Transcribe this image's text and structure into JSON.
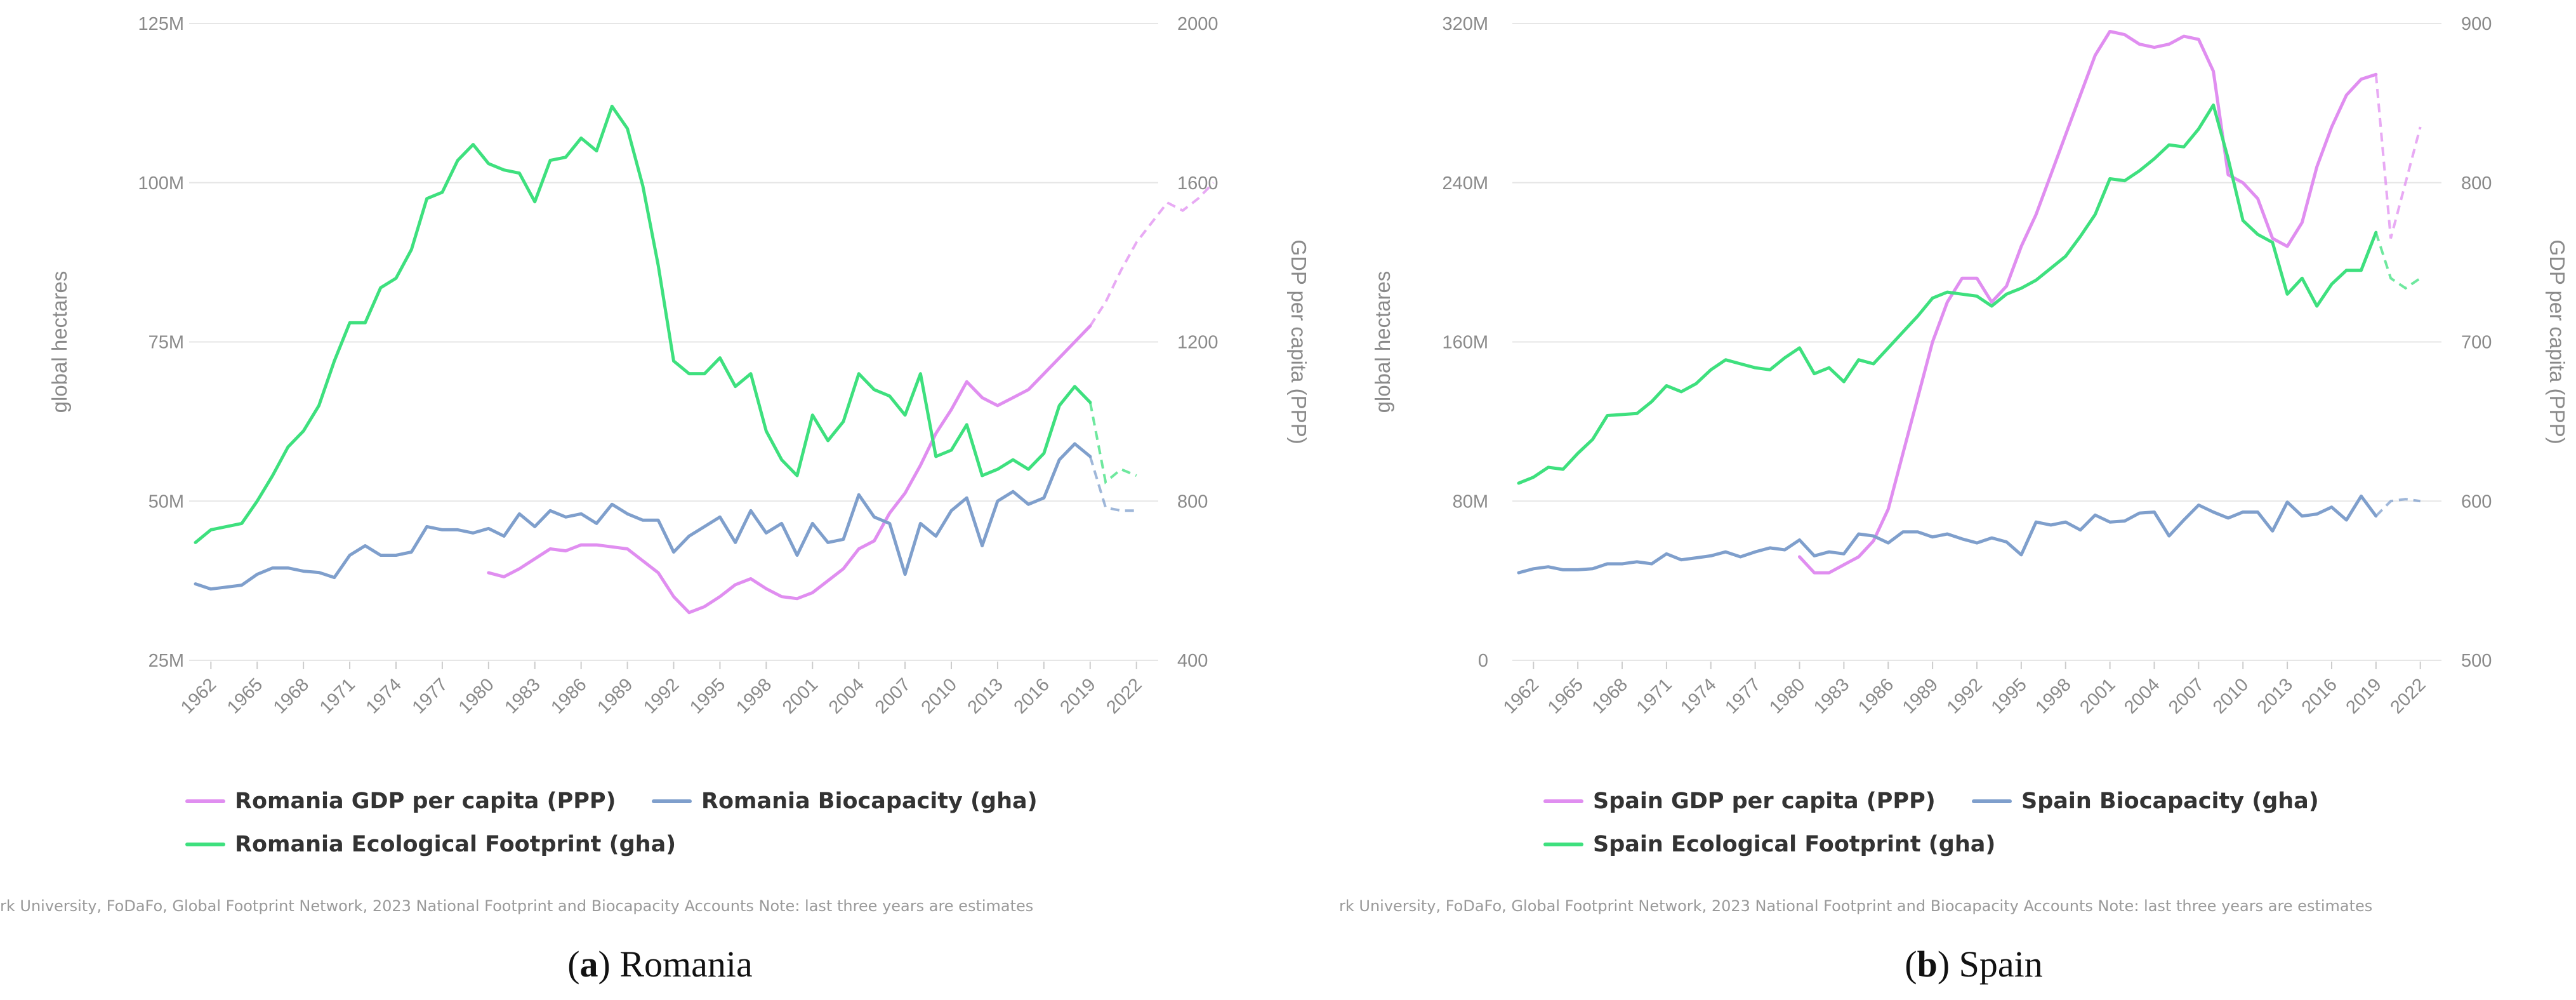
{
  "chart_data": [
    {
      "type": "line",
      "caption_letter": "a",
      "caption_text": "Romania",
      "source": "rk University, FoDaFo, Global Footprint Network, 2023 National Footprint and Biocapacity Accounts Note: last three years are estimates",
      "ylabel_left": "global hectares",
      "ylabel_right": "GDP per capita (PPP)",
      "left_ticks": [
        "25M",
        "50M",
        "75M",
        "100M",
        "125M"
      ],
      "right_ticks": [
        "400",
        "800",
        "1200",
        "1600",
        "2000"
      ],
      "left_range": [
        25000000,
        125000000
      ],
      "right_range": [
        400,
        2000
      ],
      "x_range": [
        1961,
        2023
      ],
      "x_ticks": [
        "1962",
        "1965",
        "1968",
        "1971",
        "1974",
        "1977",
        "1980",
        "1983",
        "1986",
        "1989",
        "1992",
        "1995",
        "1998",
        "2001",
        "2004",
        "2007",
        "2010",
        "2013",
        "2016",
        "2019",
        "2022"
      ],
      "estimate_from": 2019,
      "series": [
        {
          "name": "Romania GDP per capita (PPP)",
          "axis": "right",
          "color": "#e08ef0",
          "start_year": 1980,
          "values": [
            620,
            610,
            630,
            655,
            680,
            675,
            690,
            690,
            685,
            680,
            650,
            620,
            560,
            520,
            535,
            560,
            590,
            605,
            580,
            560,
            555,
            570,
            600,
            630,
            680,
            700,
            770,
            820,
            890,
            970,
            1030,
            1100,
            1060,
            1040,
            1060,
            1080,
            1120,
            1160,
            1200,
            1240,
            1300,
            1380,
            1450,
            1500,
            1550,
            1530,
            1560,
            1600
          ]
        },
        {
          "name": "Romania Biocapacity (gha)",
          "axis": "left",
          "color": "#7f9fcc",
          "start_year": 1961,
          "values": [
            37000000,
            36200000,
            36500000,
            36800000,
            38500000,
            39500000,
            39500000,
            39000000,
            38800000,
            38000000,
            41500000,
            43000000,
            41500000,
            41500000,
            42000000,
            46000000,
            45500000,
            45500000,
            45000000,
            45700000,
            44500000,
            48000000,
            46000000,
            48500000,
            47500000,
            48000000,
            46500000,
            49500000,
            48000000,
            47000000,
            47000000,
            42000000,
            44500000,
            46000000,
            47500000,
            43500000,
            48500000,
            45000000,
            46500000,
            41500000,
            46500000,
            43500000,
            44000000,
            51000000,
            47500000,
            46500000,
            38500000,
            46500000,
            44500000,
            48500000,
            50500000,
            43000000,
            50000000,
            51500000,
            49500000,
            50500000,
            56500000,
            59000000,
            57000000,
            49000000,
            48500000,
            48500000
          ]
        },
        {
          "name": "Romania Ecological Footprint (gha)",
          "axis": "left",
          "color": "#3ee07e",
          "start_year": 1961,
          "values": [
            43500000,
            45500000,
            46000000,
            46500000,
            50000000,
            54000000,
            58500000,
            61000000,
            65000000,
            72000000,
            78000000,
            78000000,
            83500000,
            85000000,
            89500000,
            97500000,
            98500000,
            103500000,
            106000000,
            103000000,
            102000000,
            101500000,
            97000000,
            103500000,
            104000000,
            107000000,
            105000000,
            112000000,
            108500000,
            99500000,
            87000000,
            72000000,
            70000000,
            70000000,
            72500000,
            68000000,
            70000000,
            61000000,
            56500000,
            54000000,
            63500000,
            59500000,
            62500000,
            70000000,
            67500000,
            66500000,
            63500000,
            70000000,
            57000000,
            58000000,
            62000000,
            54000000,
            55000000,
            56500000,
            55000000,
            57500000,
            65000000,
            68000000,
            65500000,
            53000000,
            55000000,
            54000000
          ]
        }
      ]
    },
    {
      "type": "line",
      "caption_letter": "b",
      "caption_text": "Spain",
      "source": "rk University, FoDaFo, Global Footprint Network, 2023 National Footprint and Biocapacity Accounts Note: last three years are estimates",
      "ylabel_left": "global hectares",
      "ylabel_right": "GDP per capita (PPP)",
      "left_ticks": [
        "0",
        "80M",
        "160M",
        "240M",
        "320M"
      ],
      "right_ticks": [
        "500",
        "600",
        "700",
        "800",
        "900"
      ],
      "left_range": [
        0,
        320000000
      ],
      "right_range": [
        500,
        900
      ],
      "x_range": [
        1961,
        2023
      ],
      "x_ticks": [
        "1962",
        "1965",
        "1968",
        "1971",
        "1974",
        "1977",
        "1980",
        "1983",
        "1986",
        "1989",
        "1992",
        "1995",
        "1998",
        "2001",
        "2004",
        "2007",
        "2010",
        "2013",
        "2016",
        "2019",
        "2022"
      ],
      "estimate_from": 2019,
      "series": [
        {
          "name": "Spain GDP per capita (PPP)",
          "axis": "right",
          "color": "#e08ef0",
          "start_year": 1980,
          "values": [
            565,
            555,
            555,
            560,
            565,
            575,
            595,
            630,
            665,
            700,
            725,
            740,
            740,
            725,
            735,
            760,
            780,
            805,
            830,
            855,
            880,
            895,
            893,
            887,
            885,
            887,
            892,
            890,
            870,
            805,
            800,
            790,
            765,
            760,
            775,
            810,
            835,
            855,
            865,
            868,
            765,
            800,
            835
          ]
        },
        {
          "name": "Spain Biocapacity (gha)",
          "axis": "left",
          "color": "#7f9fcc",
          "start_year": 1961,
          "values": [
            44000000,
            46000000,
            47000000,
            45500000,
            45500000,
            46000000,
            48500000,
            48500000,
            49500000,
            48500000,
            53500000,
            50500000,
            51500000,
            52500000,
            54500000,
            52000000,
            54500000,
            56500000,
            55500000,
            60500000,
            52500000,
            54500000,
            53500000,
            63500000,
            62500000,
            59000000,
            64500000,
            64500000,
            62000000,
            63500000,
            61000000,
            59000000,
            61500000,
            59500000,
            53000000,
            69500000,
            68000000,
            69500000,
            65500000,
            73000000,
            69500000,
            70000000,
            74000000,
            74500000,
            62500000,
            70500000,
            78000000,
            74500000,
            71500000,
            74500000,
            74500000,
            65000000,
            79500000,
            72500000,
            73500000,
            77000000,
            70500000,
            82500000,
            72500000,
            80000000,
            81000000,
            80000000
          ]
        },
        {
          "name": "Spain Ecological Footprint (gha)",
          "axis": "left",
          "color": "#3ee07e",
          "start_year": 1961,
          "values": [
            89000000,
            92000000,
            97000000,
            96000000,
            104000000,
            111000000,
            123000000,
            123500000,
            124000000,
            130000000,
            138000000,
            135000000,
            139000000,
            146000000,
            151000000,
            149000000,
            147000000,
            146000000,
            152000000,
            157000000,
            144000000,
            147000000,
            140000000,
            151000000,
            149000000,
            157000000,
            165000000,
            173000000,
            182000000,
            185000000,
            184000000,
            183000000,
            178000000,
            184000000,
            187000000,
            191000000,
            197000000,
            203000000,
            213000000,
            224000000,
            242000000,
            241000000,
            246000000,
            252000000,
            259000000,
            258000000,
            267000000,
            279000000,
            252000000,
            221000000,
            214000000,
            210000000,
            184000000,
            192000000,
            178000000,
            189000000,
            196000000,
            196000000,
            215000000,
            192000000,
            187000000,
            192000000
          ]
        }
      ]
    }
  ]
}
